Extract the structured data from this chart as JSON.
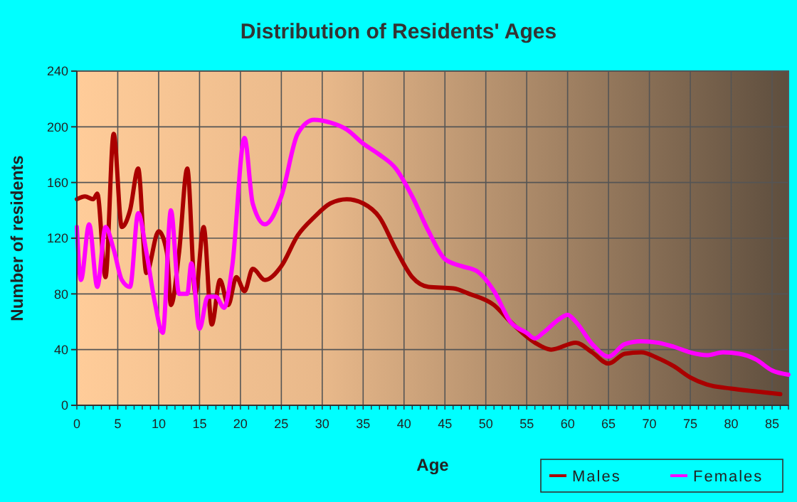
{
  "chart_data": {
    "type": "line",
    "title": "Distribution of Residents' Ages",
    "xlabel": "Age",
    "ylabel": "Number of residents",
    "xlim": [
      0,
      87
    ],
    "xticks": [
      0,
      5,
      10,
      15,
      20,
      25,
      30,
      35,
      40,
      45,
      50,
      55,
      60,
      65,
      70,
      75,
      80,
      85
    ],
    "ylim": [
      0,
      240
    ],
    "yticks": [
      0,
      40,
      80,
      120,
      160,
      200,
      240
    ],
    "grid": true,
    "legend": "bottom right",
    "series": [
      {
        "name": "Males",
        "color": "#aa0000",
        "x": [
          0,
          1,
          2,
          2.5,
          3.5,
          4.5,
          5.5,
          6.5,
          7.5,
          8.5,
          10,
          11,
          11.5,
          12.5,
          13.5,
          14.5,
          15.5,
          16.5,
          17.5,
          18.5,
          19.5,
          20.5,
          21.5,
          23,
          25,
          27,
          29,
          31,
          33,
          35,
          37,
          39,
          41,
          43,
          46,
          48,
          51,
          53,
          56,
          58,
          61,
          63,
          65,
          67,
          69,
          71,
          73,
          75,
          77,
          80,
          83,
          86
        ],
        "values": [
          148,
          150,
          148,
          152,
          92,
          195,
          128,
          140,
          170,
          95,
          125,
          110,
          72,
          110,
          170,
          80,
          128,
          58,
          90,
          72,
          92,
          82,
          98,
          90,
          100,
          122,
          135,
          145,
          148,
          145,
          135,
          112,
          92,
          85,
          84,
          80,
          72,
          60,
          45,
          40,
          45,
          38,
          30,
          37,
          38,
          34,
          28,
          20,
          15,
          12,
          10,
          8
        ]
      },
      {
        "name": "Females",
        "color": "#ff00ff",
        "x": [
          0,
          0.5,
          1.5,
          2.5,
          3.5,
          4.5,
          5.5,
          6.5,
          7.5,
          8.5,
          9.5,
          10.5,
          11.5,
          12.5,
          13.5,
          14,
          15,
          16,
          17,
          18,
          19,
          20.5,
          21.5,
          23,
          25,
          27,
          29,
          31,
          33,
          35,
          37,
          39,
          41,
          43,
          45,
          47,
          49,
          51,
          53,
          55,
          56,
          57,
          59,
          60,
          61,
          63,
          65,
          67,
          69,
          71,
          73,
          75,
          77,
          79,
          81,
          83,
          85,
          87
        ],
        "values": [
          128,
          90,
          130,
          85,
          128,
          112,
          90,
          85,
          138,
          110,
          75,
          52,
          140,
          80,
          80,
          102,
          55,
          78,
          78,
          70,
          100,
          192,
          145,
          130,
          150,
          195,
          205,
          203,
          198,
          188,
          180,
          170,
          150,
          125,
          105,
          100,
          96,
          82,
          60,
          52,
          48,
          52,
          62,
          65,
          60,
          44,
          35,
          44,
          46,
          45,
          42,
          38,
          36,
          38,
          37,
          33,
          25,
          22
        ]
      }
    ]
  }
}
